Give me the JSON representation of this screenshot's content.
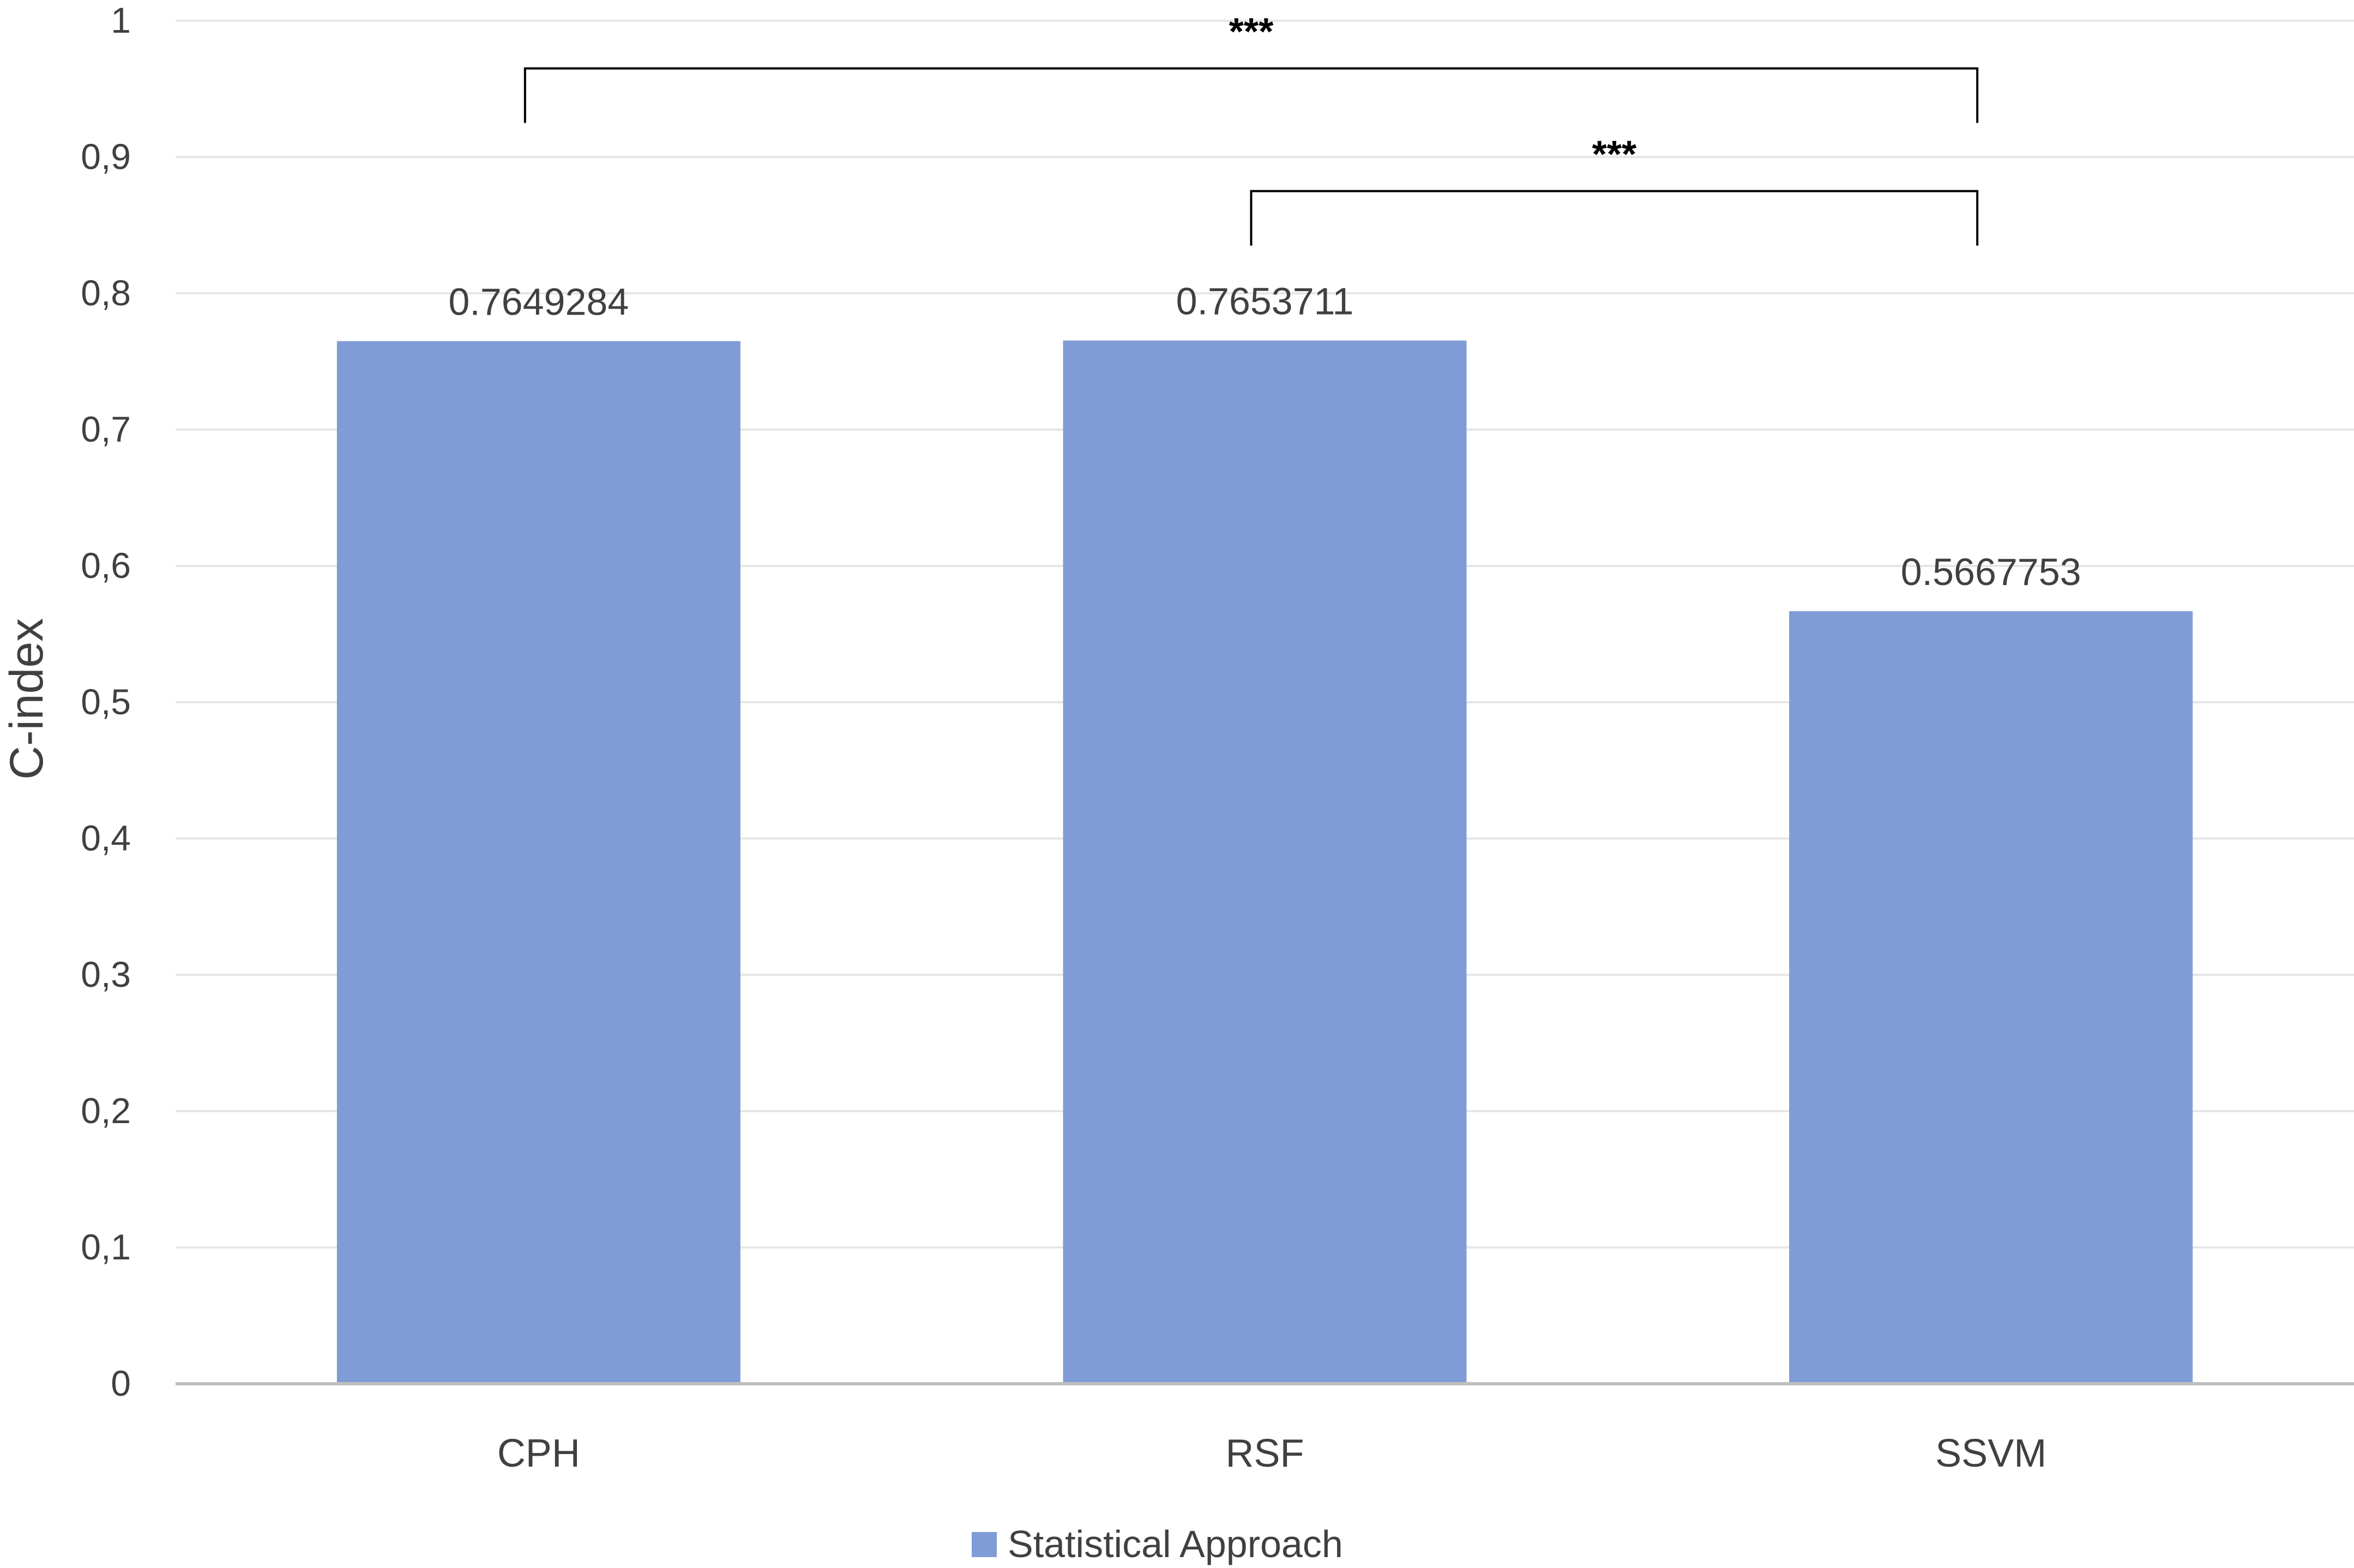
{
  "chart_data": {
    "type": "bar",
    "categories": [
      "CPH",
      "RSF",
      "SSVM"
    ],
    "series": [
      {
        "name": "Statistical Approach",
        "values": [
          0.7649284,
          0.7653711,
          0.5667753
        ],
        "color": "#7f9cd6"
      }
    ],
    "data_labels": [
      "0.7649284",
      "0.7653711",
      "0.5667753"
    ],
    "ylabel": "C-index",
    "xlabel": "",
    "ylim": [
      0,
      1
    ],
    "yticks": [
      0,
      0.1,
      0.2,
      0.3,
      0.4,
      0.5,
      0.6,
      0.7,
      0.8,
      0.9,
      1
    ],
    "ytick_labels": [
      "0",
      "0,1",
      "0,2",
      "0,3",
      "0,4",
      "0,5",
      "0,6",
      "0,7",
      "0,8",
      "0,9",
      "1"
    ],
    "grid": true,
    "legend": {
      "placement": "bottom-center",
      "entries": [
        "Statistical Approach"
      ]
    },
    "significance": [
      {
        "from": "CPH",
        "to": "SSVM",
        "label": "***",
        "level": 0.965,
        "tick_bottom": 0.925
      },
      {
        "from": "RSF",
        "to": "SSVM",
        "label": "***",
        "level": 0.875,
        "tick_bottom": 0.835
      }
    ],
    "colors": {
      "bar": "#7f9cd6",
      "grid": "#e6e6e6",
      "axis": "#bfbfbf",
      "text": "#404040",
      "bracket": "#000000"
    }
  }
}
